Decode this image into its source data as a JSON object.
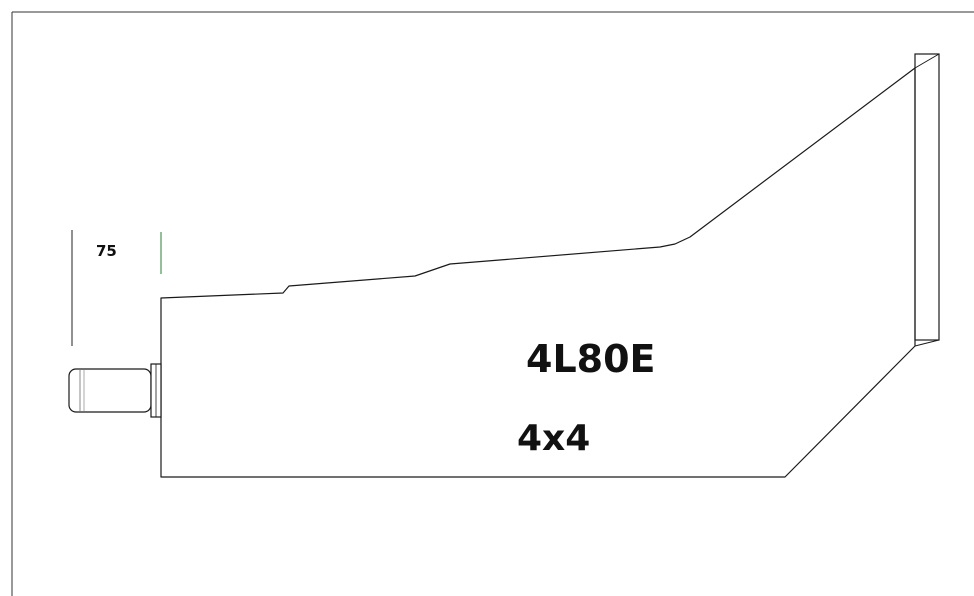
{
  "drawing": {
    "dimension_label": "75",
    "model_label": "4L80E",
    "drive_label": "4x4"
  },
  "colors": {
    "line": "#1a1a1a",
    "frame": "#333333",
    "guide": "#2e7d32",
    "background": "#ffffff"
  }
}
